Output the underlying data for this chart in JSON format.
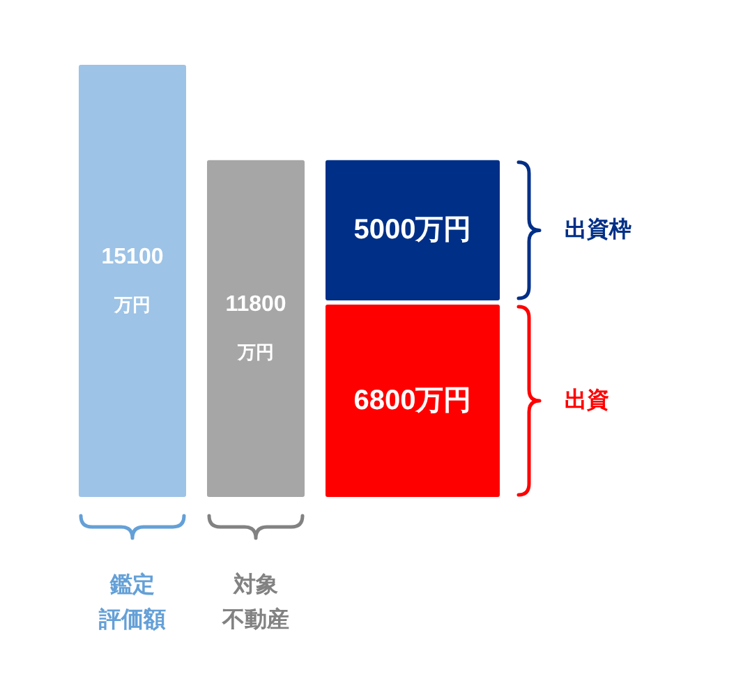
{
  "chart_data": {
    "type": "bar",
    "stacked": true,
    "tick_labels": "x",
    "categories": [
      "鑑定評価額",
      "対象不動産",
      null
    ],
    "series": [
      {
        "color": "#9dc3e6",
        "values": [
          15100,
          null,
          null
        ],
        "value_labels": [
          "15100万円",
          null,
          null
        ]
      },
      {
        "color": "#a6a6a6",
        "values": [
          null,
          11800,
          null
        ],
        "value_labels": [
          null,
          "11800万円",
          null
        ]
      },
      {
        "name": "出資",
        "color": "#ff0000",
        "values": [
          null,
          null,
          6800
        ],
        "value_labels": [
          null,
          null,
          "6800万円"
        ]
      },
      {
        "name": "出資枠",
        "color": "#002f87",
        "values": [
          null,
          null,
          5000
        ],
        "value_labels": [
          null,
          null,
          "5000万円"
        ]
      }
    ]
  }
}
